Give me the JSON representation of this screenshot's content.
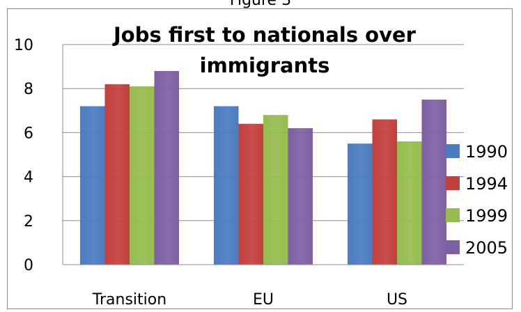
{
  "figure_caption": "Figure 3",
  "chart_data": {
    "type": "bar",
    "title_lines": [
      "Jobs first to nationals over",
      "immigrants"
    ],
    "categories": [
      "Transition",
      "EU",
      "US"
    ],
    "series": [
      {
        "name": "1990",
        "values": [
          7.2,
          7.2,
          5.5
        ],
        "color": "#4a7cc1"
      },
      {
        "name": "1994",
        "values": [
          8.2,
          6.4,
          6.6
        ],
        "color": "#c4403c"
      },
      {
        "name": "1999",
        "values": [
          8.1,
          6.8,
          5.6
        ],
        "color": "#96bc4f"
      },
      {
        "name": "2005",
        "values": [
          8.8,
          6.2,
          7.5
        ],
        "color": "#7d5fa3"
      }
    ],
    "yticks": [
      "0",
      "2",
      "4",
      "6",
      "8",
      "10"
    ],
    "ylim": [
      0,
      10
    ],
    "grid": true,
    "legend_position": "right"
  }
}
